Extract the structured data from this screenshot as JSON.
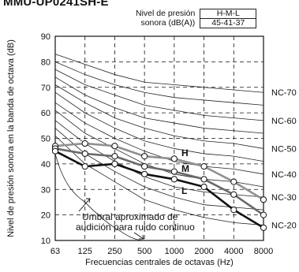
{
  "model_title": "MMU-UP0241SH-E",
  "legend_box": {
    "label_line1": "Nivel de presión",
    "label_line2": "sonora (dB(A))",
    "value_header": "H-M-L",
    "value": "45-41-37"
  },
  "chart_data": {
    "type": "line",
    "xlabel": "Frecuencias centrales de octavas (Hz)",
    "ylabel": "Nivel de presión sonora en la banda de octava (dB)",
    "x_ticks": [
      "63",
      "125",
      "250",
      "500",
      "1000",
      "2000",
      "4000",
      "8000"
    ],
    "ylim": [
      10,
      90
    ],
    "y_ticks": [
      "10",
      "20",
      "30",
      "40",
      "50",
      "60",
      "70",
      "80",
      "90"
    ],
    "grid": "dashed vertical and horizontal",
    "series": [
      {
        "name": "H",
        "values": [
          47,
          48,
          47,
          43,
          42,
          39,
          33,
          26
        ],
        "color": "#909090"
      },
      {
        "name": "M",
        "values": [
          46,
          44,
          43,
          39,
          37,
          34,
          28,
          20
        ],
        "color": "#6a6a6a"
      },
      {
        "name": "L",
        "values": [
          45,
          39,
          40,
          36,
          34,
          31,
          22,
          15
        ],
        "color": "#111111"
      }
    ],
    "nc_curves": [
      {
        "label": "NC-70",
        "values": [
          83,
          79,
          75,
          72,
          71,
          70,
          69,
          68
        ]
      },
      {
        "label": "",
        "values": [
          80,
          75,
          71,
          68,
          66,
          65,
          64,
          63
        ]
      },
      {
        "label": "NC-60",
        "values": [
          77,
          71,
          67,
          63,
          61,
          59,
          58,
          57
        ]
      },
      {
        "label": "",
        "values": [
          74,
          67,
          62,
          58,
          56,
          54,
          53,
          52
        ]
      },
      {
        "label": "NC-50",
        "values": [
          71,
          64,
          58,
          54,
          51,
          49,
          48,
          46
        ]
      },
      {
        "label": "",
        "values": [
          68,
          60,
          54,
          49,
          46,
          44,
          43,
          41
        ]
      },
      {
        "label": "NC-40",
        "values": [
          64,
          56,
          50,
          45,
          41,
          39,
          38,
          36
        ]
      },
      {
        "label": "",
        "values": [
          61,
          52,
          46,
          40,
          36,
          34,
          33,
          31
        ]
      },
      {
        "label": "NC-30",
        "values": [
          57,
          48,
          41,
          35,
          31,
          29,
          28,
          27
        ]
      },
      {
        "label": "",
        "values": [
          54,
          44,
          37,
          31,
          27,
          24,
          23,
          22
        ]
      },
      {
        "label": "NC-20",
        "values": [
          51,
          40,
          33,
          26,
          22,
          19,
          17,
          16
        ]
      }
    ],
    "threshold_curve": {
      "values": [
        44,
        25,
        15,
        10,
        10,
        10,
        10,
        10
      ]
    },
    "annotation_line1": "Umbral aproximado de",
    "annotation_line2": "audición para ruido continuo"
  }
}
